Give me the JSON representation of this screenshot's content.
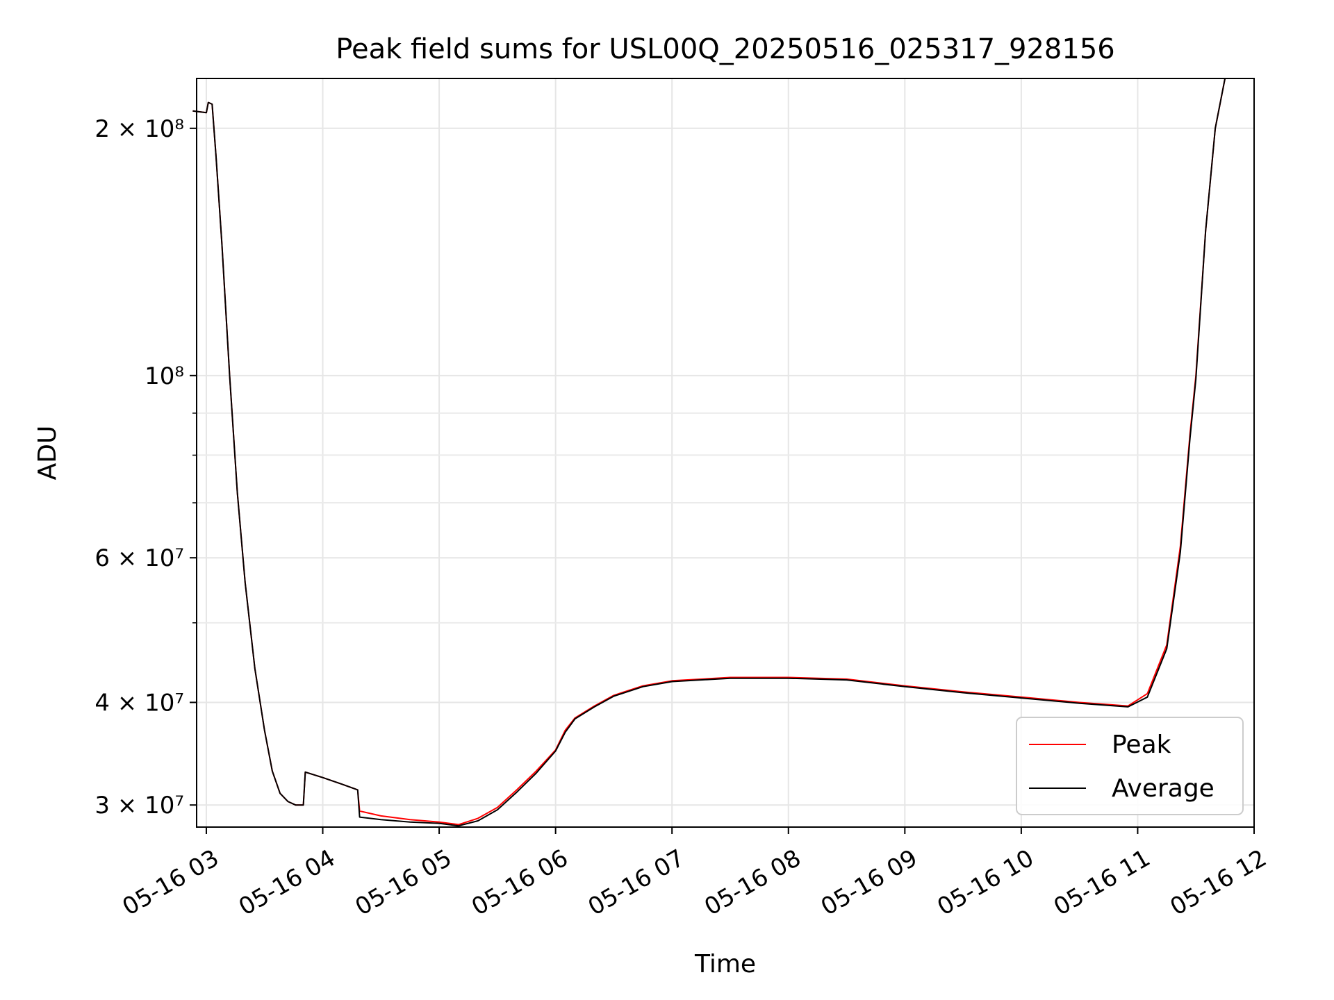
{
  "chart_data": {
    "type": "line",
    "title": "Peak field sums for USL00Q_20250516_025317_928156",
    "xlabel": "Time",
    "ylabel": "ADU",
    "y_scale": "log",
    "grid": true,
    "legend_position": "lower-right",
    "xlim": [
      "2025-05-16 02:55",
      "2025-05-16 12:00"
    ],
    "ylim": [
      28200000,
      230000000
    ],
    "x_ticks": [
      {
        "t": "2025-05-16 03:00",
        "label": "05-16 03"
      },
      {
        "t": "2025-05-16 04:00",
        "label": "05-16 04"
      },
      {
        "t": "2025-05-16 05:00",
        "label": "05-16 05"
      },
      {
        "t": "2025-05-16 06:00",
        "label": "05-16 06"
      },
      {
        "t": "2025-05-16 07:00",
        "label": "05-16 07"
      },
      {
        "t": "2025-05-16 08:00",
        "label": "05-16 08"
      },
      {
        "t": "2025-05-16 09:00",
        "label": "05-16 09"
      },
      {
        "t": "2025-05-16 10:00",
        "label": "05-16 10"
      },
      {
        "t": "2025-05-16 11:00",
        "label": "05-16 11"
      },
      {
        "t": "2025-05-16 12:00",
        "label": "05-16 12"
      }
    ],
    "y_major_ticks": [
      {
        "v": 30000000,
        "label": "3 × 10⁷"
      },
      {
        "v": 40000000,
        "label": "4 × 10⁷"
      },
      {
        "v": 60000000,
        "label": "6 × 10⁷"
      },
      {
        "v": 100000000,
        "label": "10⁸"
      },
      {
        "v": 200000000,
        "label": "2 × 10⁸"
      }
    ],
    "y_minor_ticks": [
      50000000,
      70000000,
      80000000,
      90000000
    ],
    "series": [
      {
        "name": "Peak",
        "color": "#ff0000",
        "x": [
          "2025-05-16 02:53",
          "2025-05-16 03:00",
          "2025-05-16 03:01",
          "2025-05-16 03:03",
          "2025-05-16 03:05",
          "2025-05-16 03:08",
          "2025-05-16 03:12",
          "2025-05-16 03:16",
          "2025-05-16 03:20",
          "2025-05-16 03:25",
          "2025-05-16 03:30",
          "2025-05-16 03:34",
          "2025-05-16 03:38",
          "2025-05-16 03:42",
          "2025-05-16 03:46",
          "2025-05-16 03:50",
          "2025-05-16 03:51",
          "2025-05-16 04:00",
          "2025-05-16 04:10",
          "2025-05-16 04:18",
          "2025-05-16 04:19",
          "2025-05-16 04:30",
          "2025-05-16 04:45",
          "2025-05-16 05:00",
          "2025-05-16 05:10",
          "2025-05-16 05:20",
          "2025-05-16 05:30",
          "2025-05-16 05:40",
          "2025-05-16 05:50",
          "2025-05-16 06:00",
          "2025-05-16 06:05",
          "2025-05-16 06:10",
          "2025-05-16 06:20",
          "2025-05-16 06:30",
          "2025-05-16 06:45",
          "2025-05-16 07:00",
          "2025-05-16 07:30",
          "2025-05-16 08:00",
          "2025-05-16 08:30",
          "2025-05-16 09:00",
          "2025-05-16 09:30",
          "2025-05-16 10:00",
          "2025-05-16 10:30",
          "2025-05-16 10:55",
          "2025-05-16 11:05",
          "2025-05-16 11:15",
          "2025-05-16 11:22",
          "2025-05-16 11:27",
          "2025-05-16 11:30",
          "2025-05-16 11:35",
          "2025-05-16 11:40",
          "2025-05-16 11:45"
        ],
        "values": [
          210000000,
          209000000,
          215000000,
          214000000,
          185000000,
          145000000,
          100000000,
          72000000,
          56000000,
          44000000,
          37000000,
          33000000,
          31000000,
          30300000,
          30000000,
          30000000,
          32900000,
          32400000,
          31800000,
          31300000,
          29500000,
          29100000,
          28800000,
          28600000,
          28400000,
          28900000,
          29800000,
          31300000,
          33000000,
          35000000,
          37000000,
          38300000,
          39600000,
          40800000,
          41900000,
          42500000,
          42900000,
          42900000,
          42700000,
          41900000,
          41200000,
          40600000,
          40000000,
          39600000,
          41000000,
          47000000,
          62000000,
          85000000,
          100000000,
          150000000,
          200000000,
          230000000
        ]
      },
      {
        "name": "Average",
        "color": "#000000",
        "x": [
          "2025-05-16 02:53",
          "2025-05-16 03:00",
          "2025-05-16 03:01",
          "2025-05-16 03:03",
          "2025-05-16 03:05",
          "2025-05-16 03:08",
          "2025-05-16 03:12",
          "2025-05-16 03:16",
          "2025-05-16 03:20",
          "2025-05-16 03:25",
          "2025-05-16 03:30",
          "2025-05-16 03:34",
          "2025-05-16 03:38",
          "2025-05-16 03:42",
          "2025-05-16 03:46",
          "2025-05-16 03:50",
          "2025-05-16 03:51",
          "2025-05-16 04:00",
          "2025-05-16 04:10",
          "2025-05-16 04:18",
          "2025-05-16 04:19",
          "2025-05-16 04:30",
          "2025-05-16 04:45",
          "2025-05-16 05:00",
          "2025-05-16 05:10",
          "2025-05-16 05:20",
          "2025-05-16 05:30",
          "2025-05-16 05:40",
          "2025-05-16 05:50",
          "2025-05-16 06:00",
          "2025-05-16 06:05",
          "2025-05-16 06:10",
          "2025-05-16 06:20",
          "2025-05-16 06:30",
          "2025-05-16 06:45",
          "2025-05-16 07:00",
          "2025-05-16 07:30",
          "2025-05-16 08:00",
          "2025-05-16 08:30",
          "2025-05-16 09:00",
          "2025-05-16 09:30",
          "2025-05-16 10:00",
          "2025-05-16 10:30",
          "2025-05-16 10:55",
          "2025-05-16 11:05",
          "2025-05-16 11:15",
          "2025-05-16 11:22",
          "2025-05-16 11:27",
          "2025-05-16 11:30",
          "2025-05-16 11:35",
          "2025-05-16 11:40",
          "2025-05-16 11:45"
        ],
        "values": [
          210000000,
          209000000,
          215000000,
          214000000,
          185000000,
          145000000,
          100000000,
          72000000,
          56000000,
          44000000,
          37000000,
          33000000,
          31000000,
          30300000,
          30000000,
          30000000,
          32900000,
          32400000,
          31800000,
          31300000,
          29000000,
          28800000,
          28600000,
          28500000,
          28300000,
          28700000,
          29600000,
          31100000,
          32800000,
          34900000,
          36800000,
          38200000,
          39500000,
          40700000,
          41800000,
          42400000,
          42800000,
          42800000,
          42600000,
          41800000,
          41100000,
          40500000,
          39900000,
          39500000,
          40600000,
          46500000,
          61000000,
          84000000,
          99000000,
          150000000,
          200000000,
          230000000
        ]
      }
    ]
  }
}
